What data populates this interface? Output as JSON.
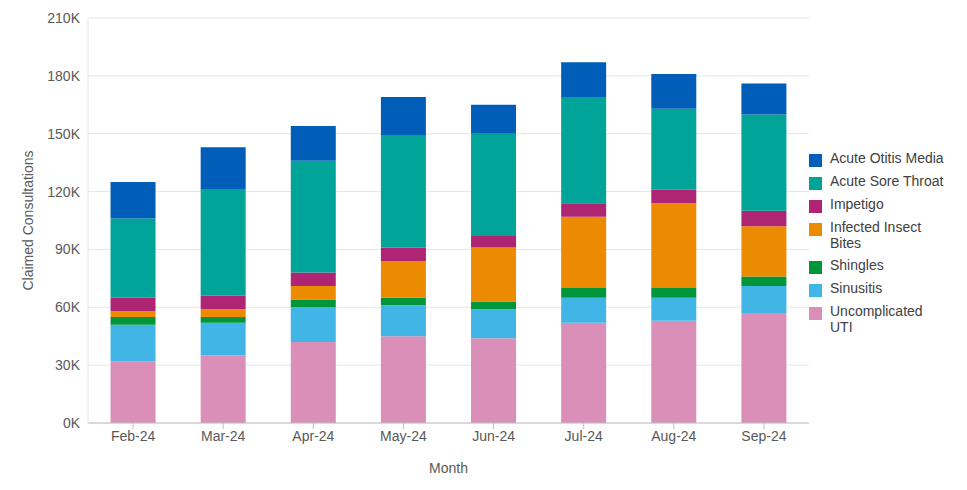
{
  "chart_data": {
    "type": "bar",
    "x_label": "Month",
    "y_label": "Claimed Consultations",
    "categories": [
      "Feb-24",
      "Mar-24",
      "Apr-24",
      "May-24",
      "Jun-24",
      "Jul-24",
      "Aug-24",
      "Sep-24"
    ],
    "stacked": true,
    "grid": true,
    "legend": "right",
    "ylim": [
      0,
      210000
    ],
    "yticks": [
      {
        "value": 0,
        "label": "0K"
      },
      {
        "value": 30000,
        "label": "30K"
      },
      {
        "value": 60000,
        "label": "60K"
      },
      {
        "value": 90000,
        "label": "90K"
      },
      {
        "value": 120000,
        "label": "120K"
      },
      {
        "value": 150000,
        "label": "150K"
      },
      {
        "value": 180000,
        "label": "180K"
      },
      {
        "value": 210000,
        "label": "210K"
      }
    ],
    "series": [
      {
        "name": "Uncomplicated UTI",
        "color": "#d98fb7",
        "values": [
          32000,
          35000,
          42000,
          45000,
          44000,
          52000,
          53000,
          57000
        ]
      },
      {
        "name": "Sinusitis",
        "color": "#41b6e6",
        "values": [
          19000,
          17000,
          18000,
          16000,
          15000,
          13000,
          12000,
          14000
        ]
      },
      {
        "name": "Shingles",
        "color": "#009639",
        "values": [
          4000,
          3000,
          4000,
          4000,
          4000,
          5000,
          5000,
          5000
        ]
      },
      {
        "name": "Infected Insect Bites",
        "color": "#ed8b00",
        "values": [
          3000,
          4000,
          7000,
          19000,
          28000,
          37000,
          44000,
          26000
        ]
      },
      {
        "name": "Impetigo",
        "color": "#ae2573",
        "values": [
          7000,
          7000,
          7000,
          7000,
          6000,
          7000,
          7000,
          8000
        ]
      },
      {
        "name": "Acute Sore Throat",
        "color": "#00a499",
        "values": [
          41000,
          55000,
          58000,
          58000,
          53000,
          55000,
          42000,
          50000
        ]
      },
      {
        "name": "Acute Otitis Media",
        "color": "#005eb8",
        "values": [
          19000,
          22000,
          18000,
          20000,
          15000,
          18000,
          18000,
          16000
        ]
      }
    ]
  }
}
